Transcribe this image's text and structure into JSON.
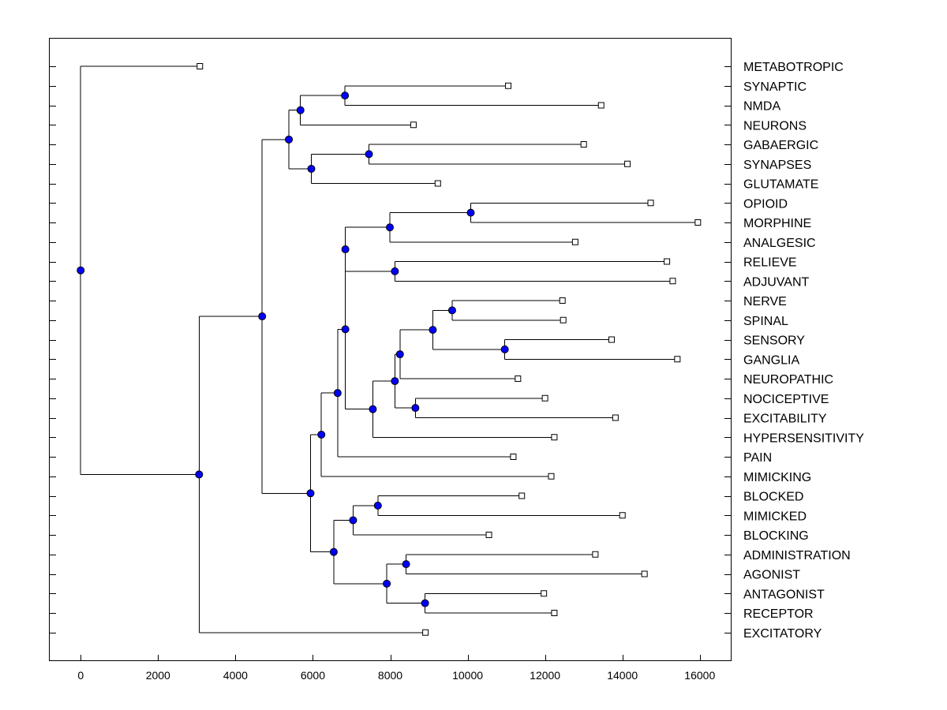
{
  "chart_data": {
    "type": "dendrogram",
    "title": "",
    "xlabel": "",
    "ylabel": "",
    "xlim": [
      -800,
      16800
    ],
    "xticks": [
      0,
      2000,
      4000,
      6000,
      8000,
      10000,
      12000,
      14000,
      16000
    ],
    "xtick_labels": [
      "0",
      "2000",
      "4000",
      "6000",
      "8000",
      "10000",
      "12000",
      "14000",
      "16000"
    ],
    "grid": false,
    "colors": {
      "node": "#0000ff",
      "leaf_fill": "#ffffff",
      "line": "#000000"
    },
    "leaves": [
      {
        "label": "METABOTROPIC",
        "x": 3080
      },
      {
        "label": "SYNAPTIC",
        "x": 11050
      },
      {
        "label": "NMDA",
        "x": 13450
      },
      {
        "label": "NEURONS",
        "x": 8600
      },
      {
        "label": "GABAERGIC",
        "x": 13000
      },
      {
        "label": "SYNAPSES",
        "x": 14130
      },
      {
        "label": "GLUTAMATE",
        "x": 9230
      },
      {
        "label": "OPIOID",
        "x": 14730
      },
      {
        "label": "MORPHINE",
        "x": 15950
      },
      {
        "label": "ANALGESIC",
        "x": 12780
      },
      {
        "label": "RELIEVE",
        "x": 15150
      },
      {
        "label": "ADJUVANT",
        "x": 15300
      },
      {
        "label": "NERVE",
        "x": 12450
      },
      {
        "label": "SPINAL",
        "x": 12470
      },
      {
        "label": "SENSORY",
        "x": 13720
      },
      {
        "label": "GANGLIA",
        "x": 15420
      },
      {
        "label": "NEUROPATHIC",
        "x": 11300
      },
      {
        "label": "NOCICEPTIVE",
        "x": 12000
      },
      {
        "label": "EXCITABILITY",
        "x": 13820
      },
      {
        "label": "HYPERSENSITIVITY",
        "x": 12240
      },
      {
        "label": "PAIN",
        "x": 11180
      },
      {
        "label": "MIMICKING",
        "x": 12160
      },
      {
        "label": "BLOCKED",
        "x": 11400
      },
      {
        "label": "MIMICKED",
        "x": 14000
      },
      {
        "label": "BLOCKING",
        "x": 10550
      },
      {
        "label": "ADMINISTRATION",
        "x": 13300
      },
      {
        "label": "AGONIST",
        "x": 14570
      },
      {
        "label": "ANTAGONIST",
        "x": 11970
      },
      {
        "label": "RECEPTOR",
        "x": 12240
      },
      {
        "label": "EXCITATORY",
        "x": 8910
      }
    ],
    "merges": [
      {
        "id": "n1",
        "x": 6830,
        "children": [
          "L1",
          "L2"
        ]
      },
      {
        "id": "n2",
        "x": 5680,
        "children": [
          "n1",
          "L3"
        ]
      },
      {
        "id": "n3",
        "x": 7450,
        "children": [
          "L4",
          "L5"
        ]
      },
      {
        "id": "n4",
        "x": 5960,
        "children": [
          "n3",
          "L6"
        ]
      },
      {
        "id": "n5",
        "x": 5380,
        "children": [
          "n2",
          "n4"
        ]
      },
      {
        "id": "n6",
        "x": 10080,
        "children": [
          "L7",
          "L8"
        ]
      },
      {
        "id": "n7",
        "x": 7990,
        "children": [
          "n6",
          "L9"
        ]
      },
      {
        "id": "n8",
        "x": 8120,
        "children": [
          "L10",
          "L11"
        ]
      },
      {
        "id": "n9",
        "x": 6840,
        "children": [
          "n7",
          "n8"
        ]
      },
      {
        "id": "n10",
        "x": 9600,
        "children": [
          "L12",
          "L13"
        ]
      },
      {
        "id": "n11",
        "x": 10960,
        "children": [
          "L14",
          "L15"
        ]
      },
      {
        "id": "n12",
        "x": 9100,
        "children": [
          "n10",
          "n11"
        ]
      },
      {
        "id": "n13",
        "x": 8250,
        "children": [
          "n12",
          "L16"
        ]
      },
      {
        "id": "n14",
        "x": 8650,
        "children": [
          "L17",
          "L18"
        ]
      },
      {
        "id": "n15",
        "x": 8120,
        "children": [
          "n13",
          "n14"
        ]
      },
      {
        "id": "n16",
        "x": 7550,
        "children": [
          "n15",
          "L19"
        ]
      },
      {
        "id": "n17",
        "x": 6840,
        "children": [
          "n9",
          "n16"
        ]
      },
      {
        "id": "n18",
        "x": 6640,
        "children": [
          "n17",
          "L20"
        ]
      },
      {
        "id": "n19",
        "x": 6220,
        "children": [
          "n18",
          "L21"
        ]
      },
      {
        "id": "n20",
        "x": 7680,
        "children": [
          "L22",
          "L23"
        ]
      },
      {
        "id": "n21",
        "x": 7040,
        "children": [
          "n20",
          "L24"
        ]
      },
      {
        "id": "n22",
        "x": 8410,
        "children": [
          "L25",
          "L26"
        ]
      },
      {
        "id": "n23",
        "x": 8900,
        "children": [
          "L27",
          "L28"
        ]
      },
      {
        "id": "n24",
        "x": 7910,
        "children": [
          "n22",
          "n23"
        ]
      },
      {
        "id": "n25",
        "x": 6540,
        "children": [
          "n21",
          "n24"
        ]
      },
      {
        "id": "n26",
        "x": 5940,
        "children": [
          "n19",
          "n25"
        ]
      },
      {
        "id": "n27",
        "x": 4690,
        "children": [
          "n5",
          "n26"
        ]
      },
      {
        "id": "n28",
        "x": 3060,
        "children": [
          "n27",
          "L29"
        ]
      },
      {
        "id": "n29",
        "x": 0,
        "children": [
          "L0",
          "n28"
        ]
      }
    ]
  }
}
